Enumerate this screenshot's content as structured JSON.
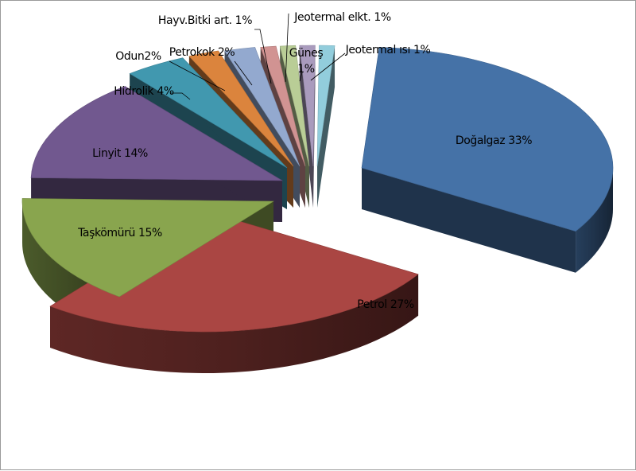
{
  "chart_data": {
    "type": "pie",
    "style": "3d-exploded",
    "title": "",
    "legend": "none",
    "slices": [
      {
        "name": "Doğalgaz",
        "value": 33,
        "label": "Doğalgaz 33%",
        "color": "#4572A7"
      },
      {
        "name": "Petrol",
        "value": 27,
        "label": "Petrol 27%",
        "color": "#AA4643"
      },
      {
        "name": "Taşkömürü",
        "value": 15,
        "label": "Taşkömürü 15%",
        "color": "#89A54E"
      },
      {
        "name": "Linyit",
        "value": 14,
        "label": "Linyit 14%",
        "color": "#71588F"
      },
      {
        "name": "Hidrolik",
        "value": 4,
        "label": "Hidrolik 4%",
        "color": "#4198AF"
      },
      {
        "name": "Odun",
        "value": 2,
        "label": "Odun2%",
        "color": "#DB843D"
      },
      {
        "name": "Petrokok",
        "value": 2,
        "label": "Petrokok 2%",
        "color": "#93A9CF"
      },
      {
        "name": "Hayv.Bitki art.",
        "value": 1,
        "label": "Hayv.Bitki art. 1%",
        "color": "#D19392"
      },
      {
        "name": "Jeotermal elkt.",
        "value": 1,
        "label": "Jeotermal elkt. 1%",
        "color": "#B9CD96"
      },
      {
        "name": "Güneş",
        "value": 1,
        "label": "Güneş\n1%",
        "color": "#A99BBD"
      },
      {
        "name": "Jeotermal ısı",
        "value": 1,
        "label": "Jeotermal ısı 1%",
        "color": "#92CDDC"
      }
    ]
  }
}
